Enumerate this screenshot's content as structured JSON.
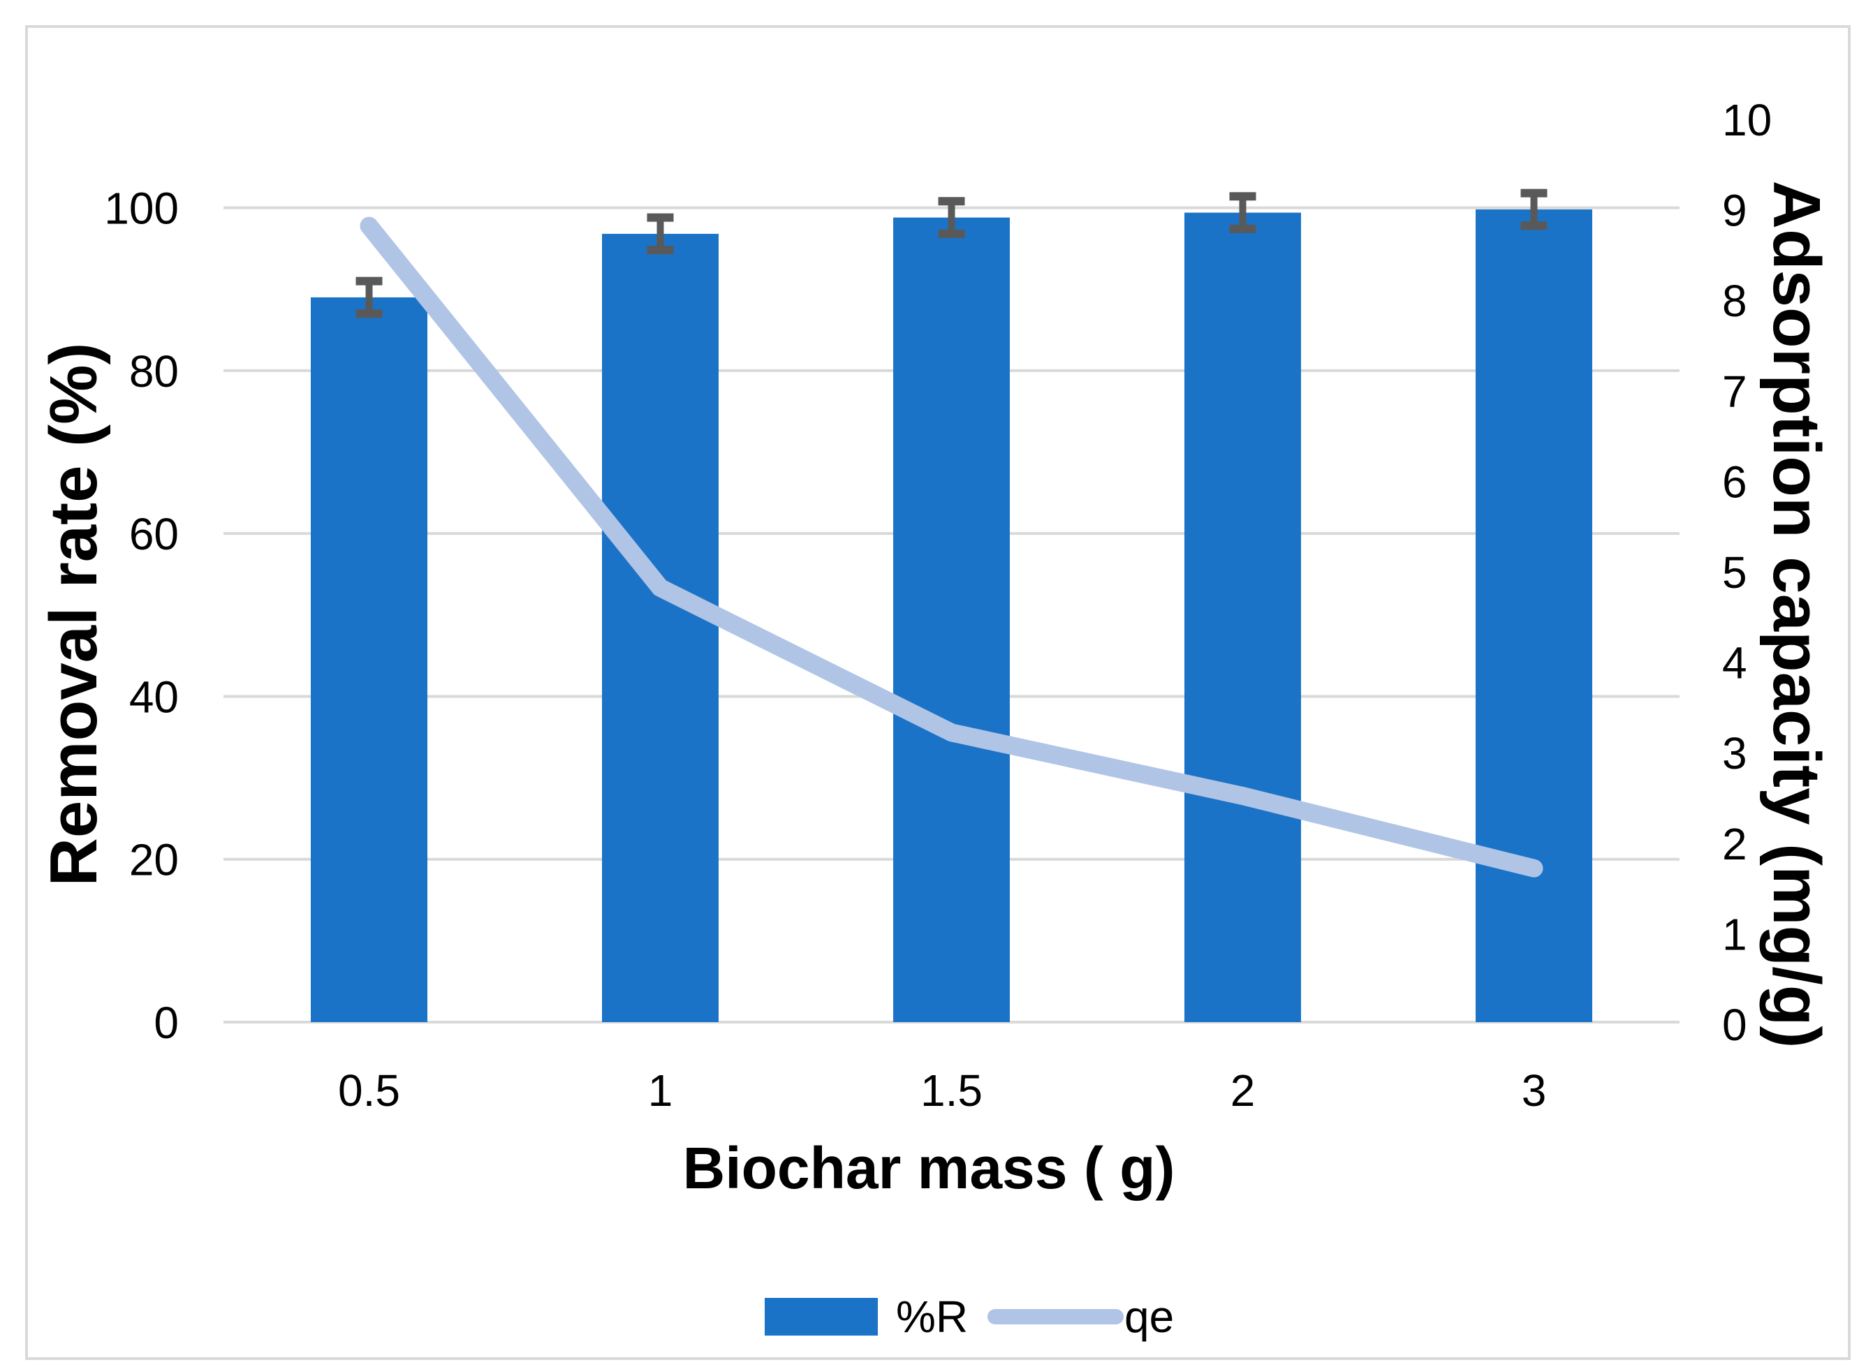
{
  "figure": {
    "background": "#FFFFFF",
    "border_color": "#D9D9D9"
  },
  "chart_data": {
    "type": "combo-bar-line",
    "title": "",
    "categories": [
      "0.5",
      "1",
      "1.5",
      "2",
      "3"
    ],
    "xlabel": "Biochar mass ( g)",
    "left_axis": {
      "label": "Removal rate (%)",
      "lim": [
        0,
        100
      ],
      "tick_values": [
        0,
        20,
        40,
        60,
        80,
        100
      ],
      "tick_labels": [
        "0",
        "20",
        "40",
        "60",
        "80",
        "100"
      ]
    },
    "right_axis": {
      "label": "Adsorption capacity (mg/g)",
      "lim": [
        0,
        10
      ],
      "tick_values": [
        0,
        1,
        2,
        3,
        4,
        5,
        6,
        7,
        8,
        9,
        10
      ],
      "tick_labels": [
        "0",
        "1",
        "2",
        "3",
        "4",
        "5",
        "6",
        "7",
        "8",
        "9",
        "10"
      ]
    },
    "axis_alignment": {
      "left_value": 100,
      "right_value": 9
    },
    "grid": {
      "show": true,
      "color": "#D9D9D9",
      "at_left_ticks": true
    },
    "series": [
      {
        "name": "%R",
        "type": "bar",
        "axis": "left",
        "values": [
          89,
          96.8,
          98.8,
          99.4,
          99.8
        ],
        "error_bars": {
          "plus": 2,
          "minus": 2,
          "color": "#595959"
        },
        "color": "#1B73C7"
      },
      {
        "name": "qe",
        "type": "line",
        "axis": "right",
        "values": [
          8.8,
          4.8,
          3.2,
          2.5,
          1.7
        ],
        "color": "#B0C4E6"
      }
    ],
    "legend": {
      "position": "bottom-center",
      "entries": [
        "%R",
        "qe"
      ]
    }
  }
}
